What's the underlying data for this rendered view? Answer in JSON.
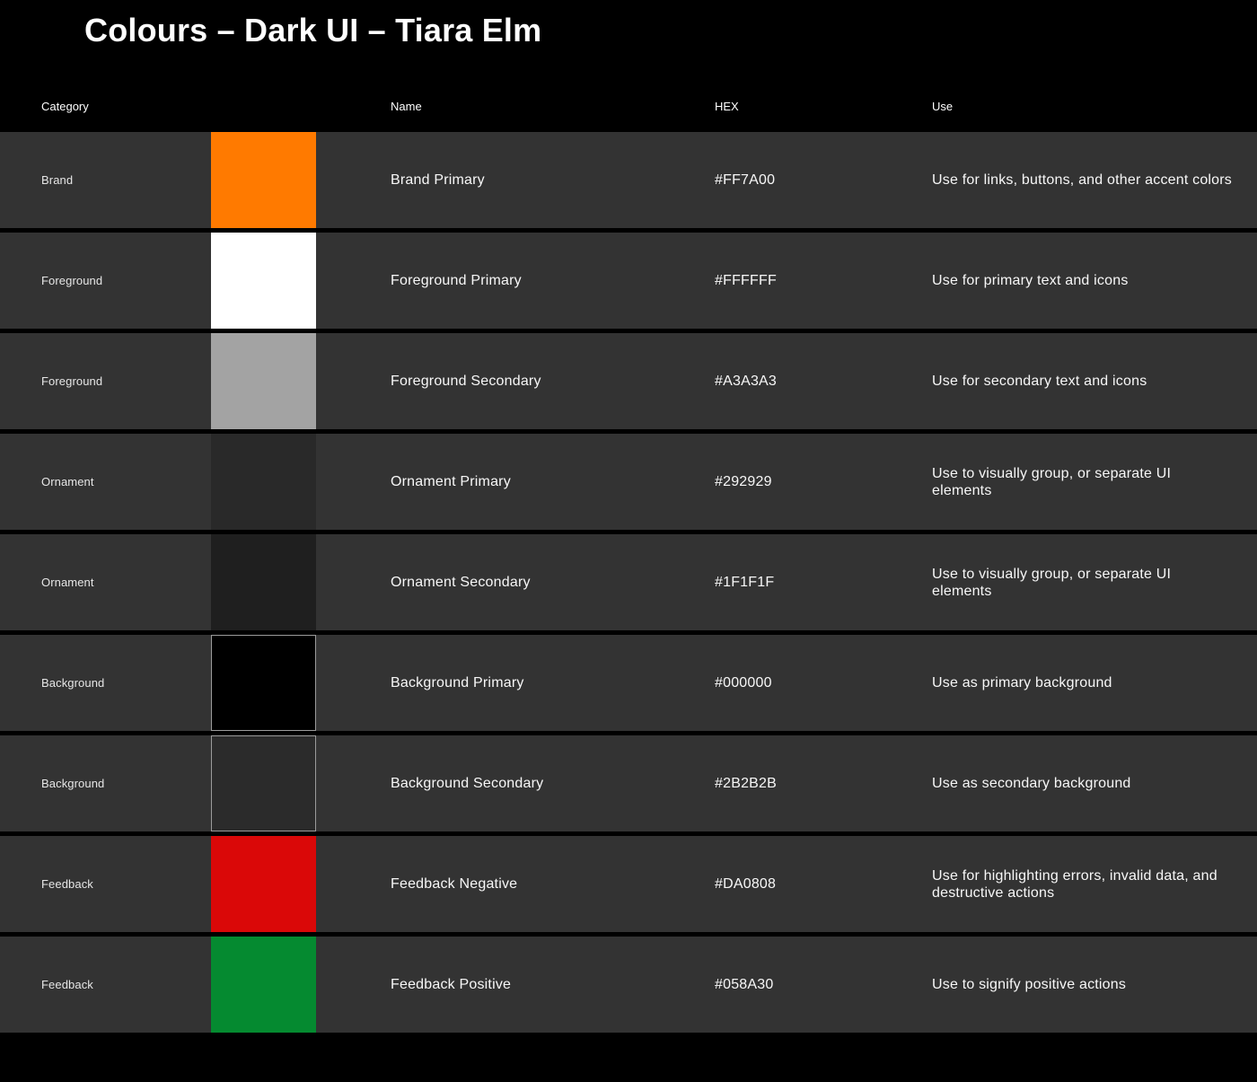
{
  "page": {
    "title": "Colours – Dark UI – Tiara Elm"
  },
  "table": {
    "columns": {
      "category": "Category",
      "name": "Name",
      "hex": "HEX",
      "use": "Use"
    },
    "rows": [
      {
        "category": "Brand",
        "swatch_color": "#FF7A00",
        "swatch_border": false,
        "name": "Brand Primary",
        "hex": "#FF7A00",
        "use": "Use for links, buttons, and other accent colors"
      },
      {
        "category": "Foreground",
        "swatch_color": "#FFFFFF",
        "swatch_border": false,
        "name": "Foreground Primary",
        "hex": "#FFFFFF",
        "use": "Use for primary text and icons"
      },
      {
        "category": "Foreground",
        "swatch_color": "#A3A3A3",
        "swatch_border": false,
        "name": "Foreground Secondary",
        "hex": "#A3A3A3",
        "use": "Use for secondary text and icons"
      },
      {
        "category": "Ornament",
        "swatch_color": "#292929",
        "swatch_border": false,
        "name": "Ornament Primary",
        "hex": "#292929",
        "use": "Use to visually group, or separate UI\nelements"
      },
      {
        "category": "Ornament",
        "swatch_color": "#1F1F1F",
        "swatch_border": false,
        "name": "Ornament Secondary",
        "hex": "#1F1F1F",
        "use": "Use to visually group, or separate UI\nelements"
      },
      {
        "category": "Background",
        "swatch_color": "#000000",
        "swatch_border": true,
        "name": "Background Primary",
        "hex": "#000000",
        "use": "Use as primary background"
      },
      {
        "category": "Background",
        "swatch_color": "#2B2B2B",
        "swatch_border": true,
        "name": "Background Secondary",
        "hex": "#2B2B2B",
        "use": "Use as secondary background"
      },
      {
        "category": "Feedback",
        "swatch_color": "#DA0808",
        "swatch_border": false,
        "name": "Feedback Negative",
        "hex": "#DA0808",
        "use": "Use for highlighting errors, invalid data, and\ndestructive actions"
      },
      {
        "category": "Feedback",
        "swatch_color": "#058A30",
        "swatch_border": false,
        "name": "Feedback Positive",
        "hex": "#058A30",
        "use": "Use to signify positive actions"
      }
    ]
  },
  "theme": {
    "page_bg": "#000000",
    "row_bg": "#333333",
    "title_color": "#FFFFFF",
    "header_color": "#FFFFFF",
    "category_color": "#E6E6E6",
    "cell_color": "#F7F7F7",
    "swatch_border_color": "#9B9B9B"
  }
}
